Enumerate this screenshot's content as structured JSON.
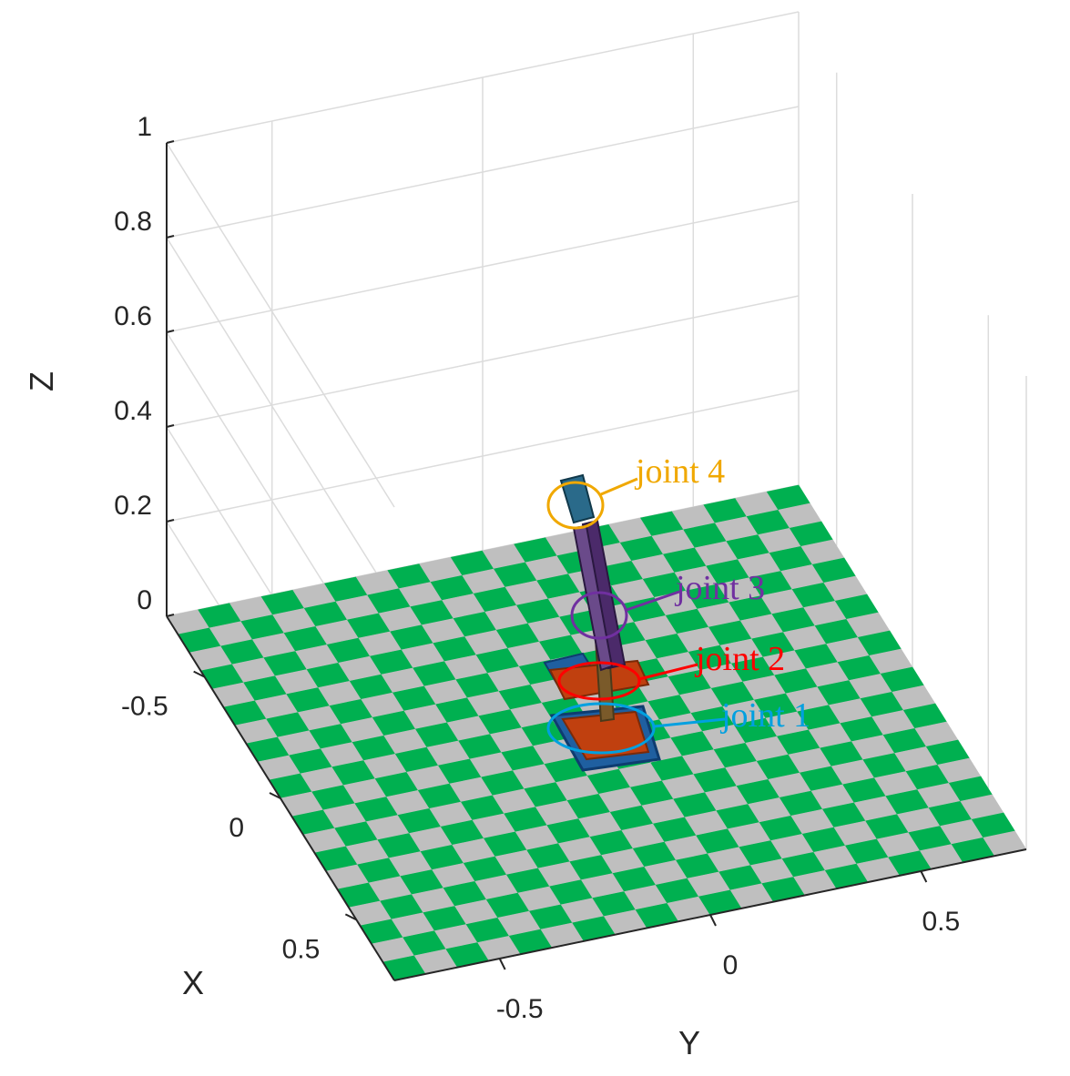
{
  "chart_data": {
    "type": "3d-surface",
    "xlabel": "X",
    "ylabel": "Y",
    "zlabel": "Z",
    "xlim": [
      -0.75,
      0.75
    ],
    "ylim": [
      -0.75,
      0.75
    ],
    "zlim": [
      0,
      1
    ],
    "x_ticks": [
      {
        "value": -0.5,
        "label": "-0.5"
      },
      {
        "value": 0,
        "label": "0"
      },
      {
        "value": 0.5,
        "label": "0.5"
      }
    ],
    "y_ticks": [
      {
        "value": -0.5,
        "label": "-0.5"
      },
      {
        "value": 0,
        "label": "0"
      },
      {
        "value": 0.5,
        "label": "0.5"
      }
    ],
    "z_ticks": [
      {
        "value": 0,
        "label": "0"
      },
      {
        "value": 0.2,
        "label": "0.2"
      },
      {
        "value": 0.4,
        "label": "0.4"
      },
      {
        "value": 0.6,
        "label": "0.6"
      },
      {
        "value": 0.8,
        "label": "0.8"
      },
      {
        "value": 1,
        "label": "1"
      }
    ],
    "grid": true,
    "floor": {
      "pattern": "checkerboard",
      "divisions": 20,
      "colors": [
        "#00b050",
        "#bfbfbf"
      ]
    },
    "annotations": [
      {
        "label": "joint 4",
        "color": "#f0a800"
      },
      {
        "label": "joint 3",
        "color": "#7030a0"
      },
      {
        "label": "joint 2",
        "color": "#ff0000"
      },
      {
        "label": "joint 1",
        "color": "#00a0e0"
      }
    ]
  }
}
